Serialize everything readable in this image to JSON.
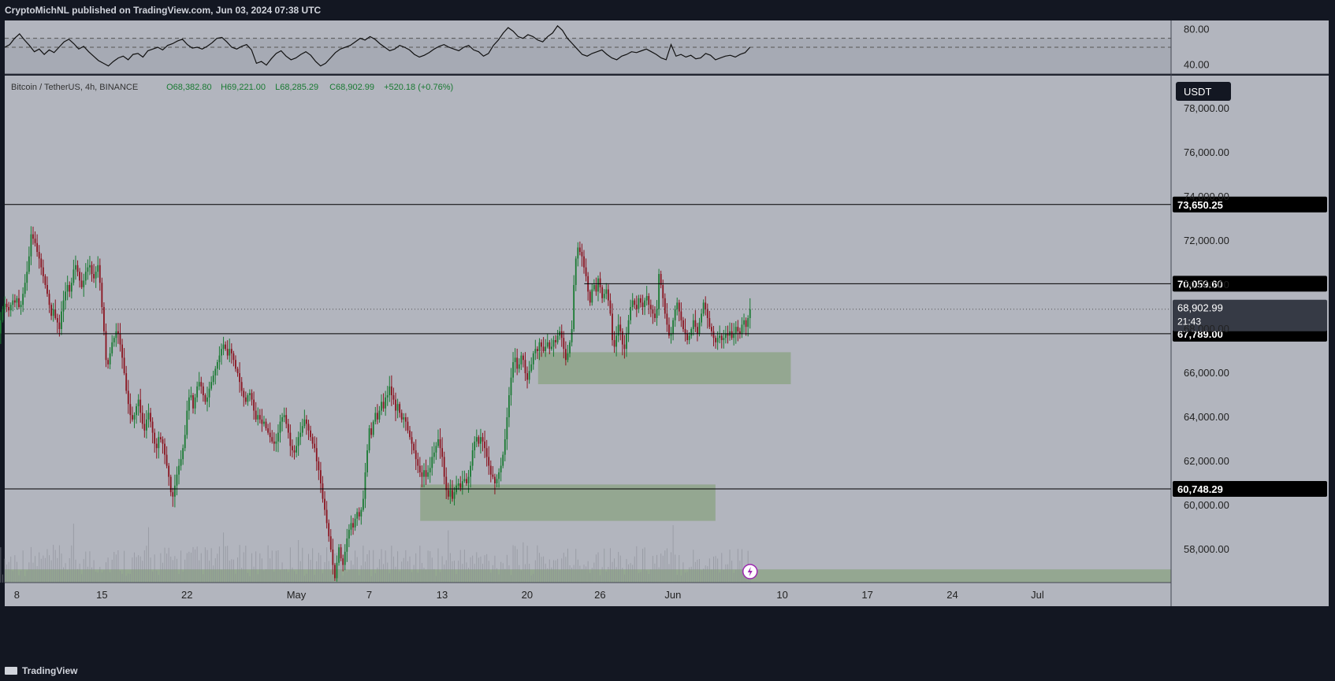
{
  "header": {
    "publish_text": "CryptoMichNL published on TradingView.com, Jun 03, 2024 07:38 UTC"
  },
  "footer": {
    "brand": "TradingView"
  },
  "colors": {
    "background": "#b2b5be",
    "up": "#1a7a33",
    "down": "#8a1420",
    "zone": "#8ea48a",
    "axis_bg": "#b2b5be"
  },
  "chart_data": [
    {
      "type": "line",
      "title": "",
      "ylim": [
        30,
        90
      ],
      "ytick_labels": [
        "80.00",
        "40.00"
      ],
      "bands": [
        70,
        60,
        30
      ],
      "series": [
        {
          "values": [
            60,
            63,
            70,
            75,
            68,
            62,
            55,
            58,
            52,
            57,
            54,
            60,
            66,
            69,
            64,
            58,
            61,
            55,
            50,
            45,
            42,
            39,
            44,
            48,
            50,
            46,
            52,
            53,
            49,
            56,
            58,
            60,
            57,
            62,
            64,
            67,
            69,
            63,
            59,
            60,
            58,
            61,
            65,
            70,
            71,
            66,
            60,
            58,
            61,
            63,
            57,
            42,
            44,
            40,
            47,
            53,
            56,
            50,
            46,
            48,
            52,
            55,
            51,
            44,
            39,
            42,
            48,
            54,
            58,
            60,
            62,
            66,
            70,
            68,
            72,
            69,
            64,
            60,
            56,
            58,
            62,
            60,
            57,
            52,
            49,
            51,
            54,
            58,
            61,
            63,
            60,
            58,
            56,
            60,
            62,
            57,
            55,
            50,
            53,
            62,
            68,
            76,
            82,
            78,
            72,
            70,
            74,
            72,
            68,
            66,
            72,
            76,
            84,
            79,
            70,
            64,
            58,
            52,
            50,
            53,
            55,
            57,
            52,
            48,
            46,
            50,
            52,
            55,
            54,
            56,
            58,
            55,
            52,
            48,
            46,
            63,
            50,
            52,
            49,
            51,
            47,
            48,
            53,
            51,
            46,
            48,
            50,
            51,
            49,
            52,
            54,
            60
          ]
        }
      ]
    },
    {
      "type": "candlestick",
      "legend": {
        "symbol": "Bitcoin / TetherUS, 4h, BINANCE",
        "open": "O68,382.80",
        "high": "H69,221.00",
        "low": "L68,285.29",
        "close": "C68,902.99",
        "change": "+520.18 (+0.76%)"
      },
      "currency": "USDT",
      "ylim": [
        56500,
        79500
      ],
      "ytick_values": [
        58000,
        60000,
        62000,
        64000,
        66000,
        68000,
        70000,
        72000,
        74000,
        76000,
        78000
      ],
      "ytick_labels": [
        "58,000.00",
        "60,000.00",
        "62,000.00",
        "64,000.00",
        "66,000.00",
        "68,000.00",
        "70,000.00",
        "72,000.00",
        "74,000.00",
        "76,000.00",
        "78,000.00"
      ],
      "xlim_days": [
        -1.0,
        95.0
      ],
      "xtick_days": [
        0,
        7,
        14,
        21,
        23,
        30,
        37,
        44,
        51,
        58,
        65,
        72,
        79,
        86,
        93
      ],
      "xtick_labels": [
        "8",
        "15",
        "22",
        "May",
        "7",
        "13",
        "20",
        "26",
        "Jun",
        "10",
        "17",
        "24",
        "Jul"
      ],
      "xtick_label_days": [
        0,
        7,
        14,
        23,
        29,
        35,
        42,
        48,
        54,
        63,
        70,
        77,
        84
      ],
      "levels": [
        {
          "price": 73650.25,
          "label": "73,650.25",
          "from_day": -1.0
        },
        {
          "price": 70059.6,
          "label": "70,059.60",
          "from_day": 46.7
        },
        {
          "price": 67789.0,
          "label": "67,789.00",
          "from_day": -1.0
        },
        {
          "price": 60748.29,
          "label": "60,748.29",
          "from_day": -1.0
        }
      ],
      "last_price": {
        "price": 68902.99,
        "label": "68,902.99",
        "countdown": "21:43"
      },
      "zones": [
        {
          "from_day": 42.9,
          "to_day": 63.7,
          "low": 65500,
          "high": 66950
        },
        {
          "from_day": 33.2,
          "to_day": 57.5,
          "low": 59300,
          "high": 60950
        },
        {
          "from_day": -1.0,
          "to_day": 95.0,
          "low": 56500,
          "high": 57100
        }
      ],
      "ohlc_start_day": -1.5,
      "ohlc_step_day": 0.1667,
      "closes": [
        67800,
        68400,
        68900,
        69150,
        69000,
        68850,
        69100,
        69300,
        69200,
        69400,
        69000,
        69100,
        69600,
        70100,
        70600,
        71300,
        72300,
        72100,
        71900,
        71500,
        71200,
        70800,
        70400,
        70000,
        69600,
        69100,
        68600,
        68900,
        68500,
        68300,
        68000,
        68800,
        69300,
        69700,
        70000,
        69700,
        70100,
        70700,
        70900,
        70600,
        70200,
        69900,
        70200,
        70600,
        70800,
        70900,
        70500,
        70300,
        70600,
        70900,
        70100,
        69000,
        67900,
        66600,
        66400,
        66900,
        67400,
        67600,
        67900,
        67800,
        67300,
        66700,
        66000,
        65200,
        64600,
        64100,
        63900,
        64100,
        64500,
        64800,
        64200,
        63700,
        63400,
        63900,
        64200,
        63800,
        63300,
        62800,
        62600,
        63100,
        63000,
        62800,
        62300,
        61800,
        61300,
        60600,
        60400,
        60900,
        61400,
        61800,
        62100,
        62600,
        63200,
        64300,
        64900,
        65000,
        64400,
        64900,
        65400,
        65600,
        65400,
        65000,
        64700,
        64900,
        65300,
        65600,
        65900,
        66200,
        66500,
        66800,
        67100,
        67300,
        67100,
        66800,
        67100,
        66900,
        66600,
        66200,
        66000,
        65600,
        65200,
        64900,
        64700,
        65000,
        65100,
        64800,
        64300,
        63900,
        64100,
        63900,
        63700,
        63800,
        63500,
        63300,
        63100,
        62900,
        62800,
        62900,
        63300,
        63800,
        64000,
        64100,
        63700,
        63300,
        62700,
        62500,
        62400,
        62700,
        63100,
        63300,
        63600,
        63900,
        63700,
        63400,
        63100,
        62800,
        62600,
        62000,
        61600,
        61000,
        60300,
        59800,
        59200,
        58600,
        58000,
        57300,
        56700,
        57400,
        58100,
        57600,
        57300,
        57900,
        58500,
        58900,
        59200,
        59000,
        59400,
        59700,
        59500,
        59800,
        60300,
        61500,
        62500,
        63500,
        63200,
        63800,
        64200,
        63900,
        64300,
        64700,
        64400,
        64900,
        65000,
        65400,
        65000,
        64800,
        64300,
        64600,
        64200,
        63900,
        64000,
        63800,
        63400,
        63100,
        62800,
        62500,
        62100,
        61800,
        61500,
        61300,
        61600,
        61300,
        61500,
        61700,
        62200,
        62400,
        62700,
        63000,
        62600,
        62200,
        61300,
        60700,
        60400,
        60700,
        60300,
        60600,
        60900,
        61000,
        60800,
        61100,
        61200,
        61000,
        61300,
        61800,
        62500,
        62900,
        63100,
        62800,
        63100,
        62900,
        62600,
        62200,
        61800,
        61400,
        61300,
        61000,
        61200,
        61500,
        61800,
        62300,
        63000,
        64000,
        65000,
        65800,
        66500,
        66700,
        66200,
        66400,
        66800,
        66600,
        66000,
        65700,
        66100,
        66400,
        66900,
        67100,
        67000,
        67400,
        67200,
        67000,
        67200,
        67400,
        67100,
        67200,
        67500,
        67400,
        67700,
        67900,
        67600,
        67100,
        66600,
        66900,
        67400,
        68000,
        70000,
        71200,
        71700,
        71500,
        71300,
        70800,
        70400,
        69700,
        69200,
        69800,
        70000,
        69700,
        70300,
        69900,
        69400,
        69600,
        69800,
        69300,
        68700,
        67500,
        67200,
        67700,
        68200,
        67900,
        67300,
        67100,
        67800,
        68400,
        69000,
        69300,
        69100,
        68900,
        69400,
        69200,
        69000,
        69300,
        69500,
        69100,
        68900,
        68700,
        68500,
        68900,
        70500,
        70000,
        69400,
        68700,
        68200,
        67700,
        67800,
        68400,
        68900,
        69200,
        68800,
        68400,
        68000,
        67800,
        67500,
        67700,
        68000,
        68400,
        68100,
        67800,
        68300,
        68700,
        69200,
        68900,
        68500,
        68100,
        67900,
        67600,
        67400,
        67600,
        67700,
        67500,
        67600,
        67800,
        67700,
        67900,
        67600,
        67800,
        68100,
        67900,
        67800,
        68200,
        68400,
        68100,
        68500,
        68900
      ]
    }
  ]
}
